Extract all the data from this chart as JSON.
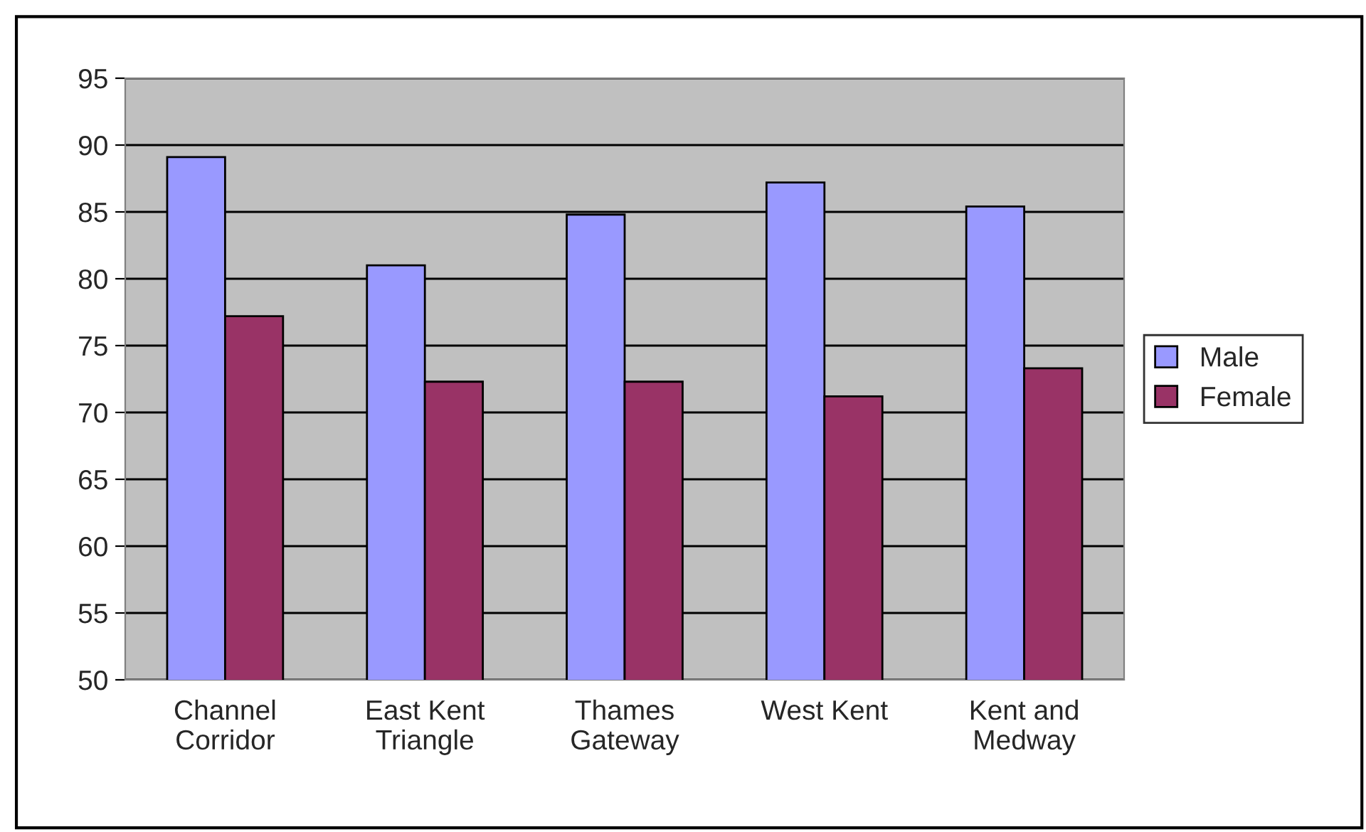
{
  "chart_data": {
    "type": "bar",
    "categories": [
      "Channel\nCorridor",
      "East Kent\nTriangle",
      "Thames\nGateway",
      "West Kent",
      "Kent and\nMedway"
    ],
    "series": [
      {
        "name": "Male",
        "color": "#9999ff",
        "values": [
          89.1,
          81.0,
          84.8,
          87.2,
          85.4
        ]
      },
      {
        "name": "Female",
        "color": "#993366",
        "values": [
          77.2,
          72.3,
          72.3,
          71.2,
          73.3
        ]
      }
    ],
    "ylim": [
      50,
      95
    ],
    "yticks": [
      50,
      55,
      60,
      65,
      70,
      75,
      80,
      85,
      90,
      95
    ],
    "grid": "y",
    "legend": "right"
  }
}
